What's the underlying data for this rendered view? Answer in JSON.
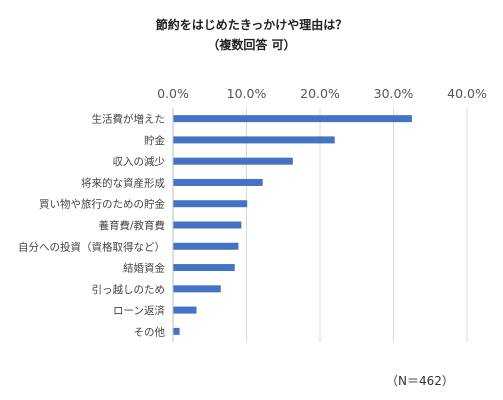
{
  "chart_data": {
    "type": "bar",
    "orientation": "horizontal",
    "title": "節約をはじめたきっかけや理由は？",
    "subtitle": "（複数回答 可）",
    "categories": [
      "生活費が増えた",
      "貯金",
      "収入の減少",
      "将来的な資産形成",
      "買い物や旅行のための貯金",
      "養育費/教育費",
      "自分への投資（資格取得など）",
      "結婚資金",
      "引っ越しのため",
      "ローン返済",
      "その他"
    ],
    "values": [
      32.5,
      22.0,
      16.3,
      12.2,
      10.1,
      9.3,
      8.9,
      8.4,
      6.5,
      3.2,
      0.9
    ],
    "xlim": [
      0,
      40
    ],
    "ticks": [
      "0.0%",
      "10.0%",
      "20.0%",
      "30.0%",
      "40.0%"
    ],
    "grid": true,
    "bar_color": "#4472c4",
    "grid_color": "#d9d9d9",
    "note": "（N＝462）"
  }
}
